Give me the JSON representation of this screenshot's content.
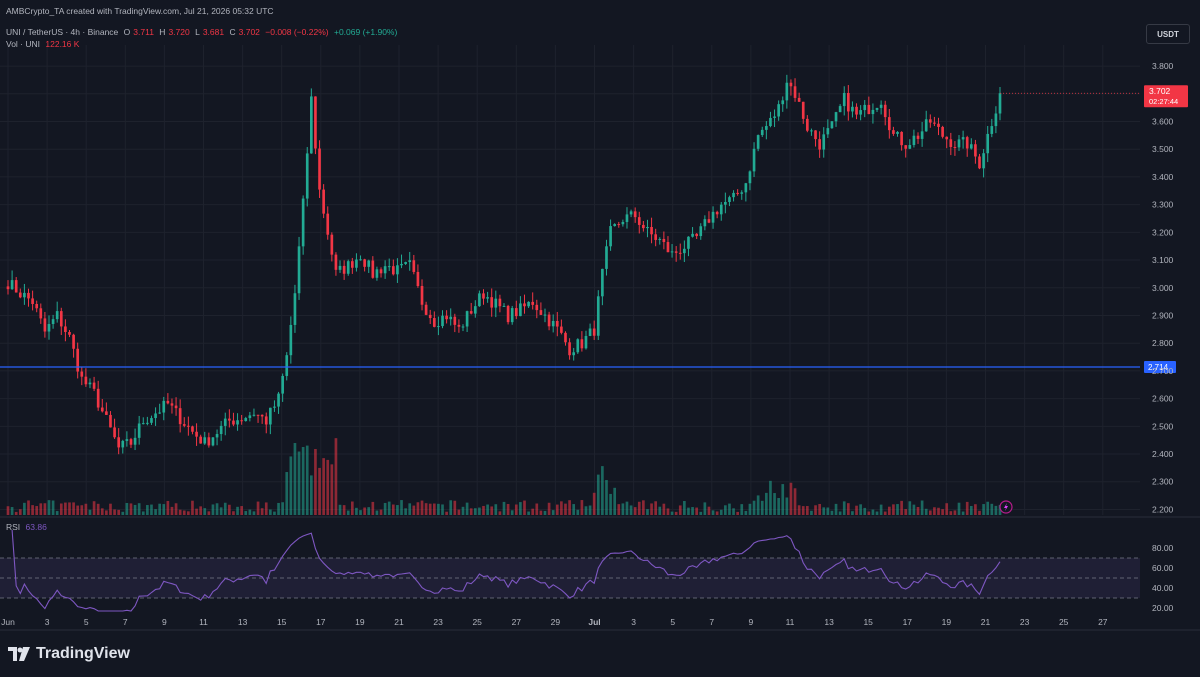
{
  "header": {
    "created_line": "AMBCrypto_TA created with TradingView.com, Jul 21, 2026 05:32 UTC",
    "symbol": "UNI / TetherUS · 4h · Binance",
    "open_label": "O",
    "open_value": "3.711",
    "high_label": "H",
    "high_value": "3.720",
    "low_label": "L",
    "low_value": "3.681",
    "close_label": "C",
    "close_value": "3.702",
    "change": "−0.008 (−0.22%)",
    "change2": "+0.069 (+1.90%)",
    "vol_label": "Vol · UNI",
    "vol_value": "122.16 K",
    "rsi_label": "RSI",
    "rsi_value": "63.86"
  },
  "currency_button": "USDT",
  "footer": {
    "brand": "TradingView"
  },
  "colors": {
    "background": "#131722",
    "up": "#22ab94",
    "down": "#f23645",
    "hline": "#2962ff",
    "rsi_line": "#7e57c2",
    "grid": "#1e222d"
  },
  "chart_data": {
    "type": "candlestick",
    "price_axis": {
      "ticks": [
        "3.800",
        "3.700",
        "3.600",
        "3.500",
        "3.400",
        "3.300",
        "3.200",
        "3.100",
        "3.000",
        "2.900",
        "2.800",
        "2.700",
        "2.600",
        "2.500",
        "2.400",
        "2.300",
        "2.200"
      ],
      "range": [
        2.18,
        3.84
      ]
    },
    "x_axis": {
      "ticks": [
        "Jun",
        "3",
        "5",
        "7",
        "9",
        "11",
        "13",
        "15",
        "17",
        "19",
        "21",
        "23",
        "25",
        "27",
        "29",
        "Jul",
        "3",
        "5",
        "7",
        "9",
        "11",
        "13",
        "15",
        "17",
        "19",
        "21",
        "23",
        "25",
        "27"
      ]
    },
    "last_price": {
      "value": "3.702",
      "countdown": "02:27:44"
    },
    "horizontal_line": {
      "value": "2.714"
    },
    "anchors": [
      [
        0,
        3.02
      ],
      [
        3,
        2.98
      ],
      [
        6,
        2.95
      ],
      [
        9,
        2.84
      ],
      [
        12,
        2.9
      ],
      [
        15,
        2.82
      ],
      [
        18,
        2.67
      ],
      [
        21,
        2.62
      ],
      [
        24,
        2.52
      ],
      [
        27,
        2.42
      ],
      [
        30,
        2.44
      ],
      [
        33,
        2.52
      ],
      [
        36,
        2.55
      ],
      [
        39,
        2.58
      ],
      [
        42,
        2.53
      ],
      [
        45,
        2.48
      ],
      [
        48,
        2.44
      ],
      [
        51,
        2.48
      ],
      [
        54,
        2.52
      ],
      [
        57,
        2.53
      ],
      [
        60,
        2.55
      ],
      [
        63,
        2.52
      ],
      [
        66,
        2.6
      ],
      [
        68,
        2.75
      ],
      [
        70,
        2.98
      ],
      [
        72,
        3.3
      ],
      [
        74,
        3.68
      ],
      [
        76,
        3.35
      ],
      [
        78,
        3.2
      ],
      [
        80,
        3.05
      ],
      [
        83,
        3.08
      ],
      [
        86,
        3.12
      ],
      [
        89,
        3.05
      ],
      [
        92,
        3.08
      ],
      [
        95,
        3.06
      ],
      [
        98,
        3.08
      ],
      [
        101,
        2.95
      ],
      [
        104,
        2.88
      ],
      [
        107,
        2.9
      ],
      [
        110,
        2.85
      ],
      [
        113,
        2.92
      ],
      [
        116,
        2.98
      ],
      [
        119,
        2.94
      ],
      [
        122,
        2.9
      ],
      [
        125,
        2.92
      ],
      [
        128,
        2.95
      ],
      [
        131,
        2.9
      ],
      [
        134,
        2.85
      ],
      [
        137,
        2.78
      ],
      [
        140,
        2.8
      ],
      [
        143,
        2.85
      ],
      [
        145,
        3.05
      ],
      [
        147,
        3.2
      ],
      [
        150,
        3.25
      ],
      [
        153,
        3.26
      ],
      [
        156,
        3.2
      ],
      [
        159,
        3.17
      ],
      [
        162,
        3.12
      ],
      [
        165,
        3.15
      ],
      [
        168,
        3.18
      ],
      [
        171,
        3.25
      ],
      [
        174,
        3.3
      ],
      [
        177,
        3.32
      ],
      [
        180,
        3.38
      ],
      [
        183,
        3.55
      ],
      [
        186,
        3.6
      ],
      [
        188,
        3.65
      ],
      [
        190,
        3.75
      ],
      [
        192,
        3.7
      ],
      [
        195,
        3.58
      ],
      [
        198,
        3.52
      ],
      [
        201,
        3.58
      ],
      [
        204,
        3.68
      ],
      [
        207,
        3.62
      ],
      [
        210,
        3.65
      ],
      [
        213,
        3.68
      ],
      [
        216,
        3.55
      ],
      [
        219,
        3.52
      ],
      [
        222,
        3.55
      ],
      [
        225,
        3.6
      ],
      [
        228,
        3.55
      ],
      [
        231,
        3.52
      ],
      [
        234,
        3.52
      ],
      [
        237,
        3.45
      ],
      [
        240,
        3.6
      ],
      [
        242,
        3.7
      ]
    ],
    "rsi_axis": {
      "ticks": [
        "80.00",
        "60.00",
        "40.00",
        "20.00"
      ],
      "range": [
        15,
        100
      ],
      "bands": [
        70,
        30
      ],
      "mid": 50
    },
    "volume_last": "122.16 K"
  }
}
